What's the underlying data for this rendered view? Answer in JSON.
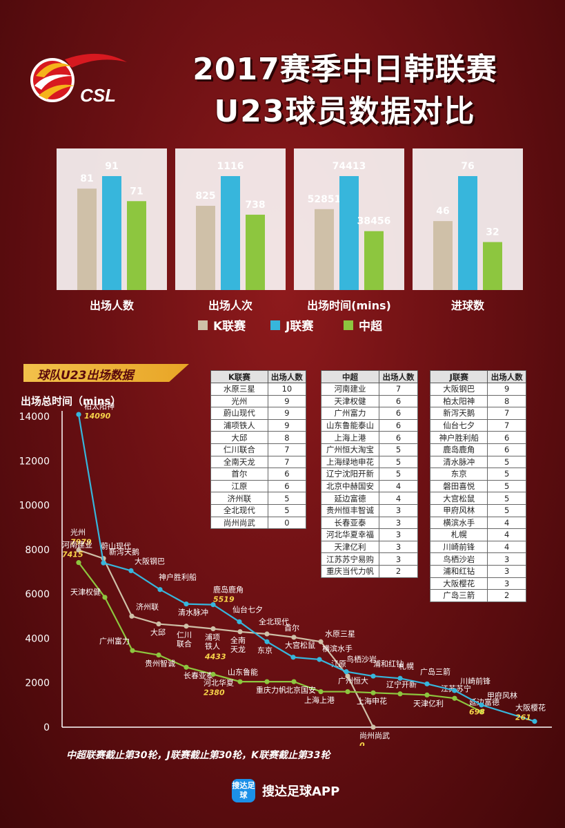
{
  "header": {
    "logo_text": "CSL",
    "title_line1": "2017赛季中日韩联赛",
    "title_line2": "U23球员数据对比"
  },
  "colors": {
    "k": "#cfc0a8",
    "j": "#37b6dc",
    "c": "#8dc63f"
  },
  "legend": [
    {
      "key": "k",
      "label": "K联赛"
    },
    {
      "key": "j",
      "label": "J联赛"
    },
    {
      "key": "c",
      "label": "中超"
    }
  ],
  "section_title": "球队U23出场数据",
  "chart_data": [
    {
      "type": "bar",
      "categories": [
        "出场人数",
        "出场人次",
        "出场时间(mins)",
        "进球数"
      ],
      "series": [
        {
          "name": "K联赛",
          "values": [
            81,
            825,
            52851,
            46
          ]
        },
        {
          "name": "J联赛",
          "values": [
            91,
            1116,
            74413,
            76
          ]
        },
        {
          "name": "中超",
          "values": [
            71,
            738,
            38456,
            32
          ]
        }
      ]
    },
    {
      "type": "line",
      "ylabel": "出场总时间（mins）",
      "ylim": [
        0,
        14000
      ],
      "yticks": [
        "0",
        "2000",
        "4000",
        "6000",
        "8000",
        "10000",
        "12000",
        "14000"
      ],
      "series": [
        {
          "name": "J联赛",
          "points": [
            [
              "柏太阳神",
              14090,
              true
            ],
            [
              "新泻天鹅",
              7400,
              false
            ],
            [
              "大阪钢巴",
              7050,
              false
            ],
            [
              "神户胜利船",
              6200,
              false
            ],
            [
              "清水脉冲",
              5550,
              false
            ],
            [
              "鹿岛鹿角",
              5519,
              true
            ],
            [
              "仙台七夕",
              4750,
              false
            ],
            [
              "东京",
              3850,
              false
            ],
            [
              "大宫松鼠",
              3150,
              false
            ],
            [
              "横滨水手",
              3050,
              false
            ],
            [
              "鸟栖沙岩",
              2500,
              false
            ],
            [
              "浦和红钻",
              2300,
              false
            ],
            [
              "札幌",
              2200,
              false
            ],
            [
              "广岛三箭",
              1950,
              false
            ],
            [
              "川崎前锋",
              1650,
              false
            ],
            [
              "甲府风林",
              1000,
              false
            ],
            [
              "大阪樱花",
              261,
              true
            ]
          ]
        },
        {
          "name": "K联赛",
          "points": [
            [
              "光州",
              7979,
              true
            ],
            [
              "蔚山现代",
              7600,
              false
            ],
            [
              "济州联",
              5000,
              false
            ],
            [
              "大邱",
              4650,
              false
            ],
            [
              "仁川联合",
              4550,
              false
            ],
            [
              "浦项铁人",
              4433,
              true
            ],
            [
              "全南天龙",
              4300,
              false
            ],
            [
              "全北现代",
              4200,
              false
            ],
            [
              "首尔",
              4050,
              false
            ],
            [
              "水原三星",
              3850,
              false
            ],
            [
              "江原",
              2300,
              false
            ],
            [
              "尚州尚武",
              0,
              true
            ]
          ]
        },
        {
          "name": "中超",
          "points": [
            [
              "河南建业",
              7415,
              true
            ],
            [
              "天津权健",
              5850,
              false
            ],
            [
              "广州富力",
              3450,
              false
            ],
            [
              "贵州智诚",
              3250,
              false
            ],
            [
              "长春亚泰",
              2700,
              false
            ],
            [
              "河北华夏",
              2380,
              true
            ],
            [
              "山东鲁能",
              2050,
              false
            ],
            [
              "重庆力帆",
              2050,
              false
            ],
            [
              "北京国安",
              2050,
              false
            ],
            [
              "上海上港",
              1600,
              false
            ],
            [
              "广州恒大",
              1600,
              false
            ],
            [
              "上海申花",
              1550,
              false
            ],
            [
              "辽宁开新",
              1500,
              false
            ],
            [
              "天津亿利",
              1450,
              false
            ],
            [
              "江苏苏宁",
              1300,
              false
            ],
            [
              "延边富德",
              698,
              true
            ]
          ]
        }
      ]
    }
  ],
  "tables": [
    {
      "header": [
        "K联赛",
        "出场人数"
      ],
      "rows": [
        [
          "水原三星",
          "10"
        ],
        [
          "光州",
          "9"
        ],
        [
          "蔚山现代",
          "9"
        ],
        [
          "浦项铁人",
          "9"
        ],
        [
          "大邱",
          "8"
        ],
        [
          "仁川联合",
          "7"
        ],
        [
          "全南天龙",
          "7"
        ],
        [
          "首尔",
          "6"
        ],
        [
          "江原",
          "6"
        ],
        [
          "济州联",
          "5"
        ],
        [
          "全北现代",
          "5"
        ],
        [
          "尚州尚武",
          "0"
        ]
      ]
    },
    {
      "header": [
        "中超",
        "出场人数"
      ],
      "rows": [
        [
          "河南建业",
          "7"
        ],
        [
          "天津权健",
          "6"
        ],
        [
          "广州富力",
          "6"
        ],
        [
          "山东鲁能泰山",
          "6"
        ],
        [
          "上海上港",
          "6"
        ],
        [
          "广州恒大淘宝",
          "5"
        ],
        [
          "上海绿地申花",
          "5"
        ],
        [
          "辽宁沈阳开新",
          "5"
        ],
        [
          "北京中赫国安",
          "4"
        ],
        [
          "延边富德",
          "4"
        ],
        [
          "贵州恒丰智诚",
          "3"
        ],
        [
          "长春亚泰",
          "3"
        ],
        [
          "河北华夏幸福",
          "3"
        ],
        [
          "天津亿利",
          "3"
        ],
        [
          "江苏苏宁易购",
          "3"
        ],
        [
          "重庆当代力帆",
          "2"
        ]
      ]
    },
    {
      "header": [
        "J联赛",
        "出场人数"
      ],
      "rows": [
        [
          "大阪钢巴",
          "9"
        ],
        [
          "柏太阳神",
          "8"
        ],
        [
          "新泻天鹅",
          "7"
        ],
        [
          "仙台七夕",
          "7"
        ],
        [
          "神户胜利船",
          "6"
        ],
        [
          "鹿岛鹿角",
          "6"
        ],
        [
          "清水脉冲",
          "5"
        ],
        [
          "东京",
          "5"
        ],
        [
          "磐田喜悦",
          "5"
        ],
        [
          "大宫松鼠",
          "5"
        ],
        [
          "甲府风林",
          "5"
        ],
        [
          "横滨水手",
          "4"
        ],
        [
          "札幌",
          "4"
        ],
        [
          "川崎前锋",
          "4"
        ],
        [
          "鸟栖沙岩",
          "3"
        ],
        [
          "浦和红钻",
          "3"
        ],
        [
          "大阪樱花",
          "3"
        ],
        [
          "广岛三箭",
          "2"
        ]
      ]
    }
  ],
  "footnote": "中超联赛截止第30轮，J联赛截止第30轮，K联赛截止第33轮",
  "app": {
    "icon_text": "搜达足球",
    "name": "搜达足球APP"
  }
}
